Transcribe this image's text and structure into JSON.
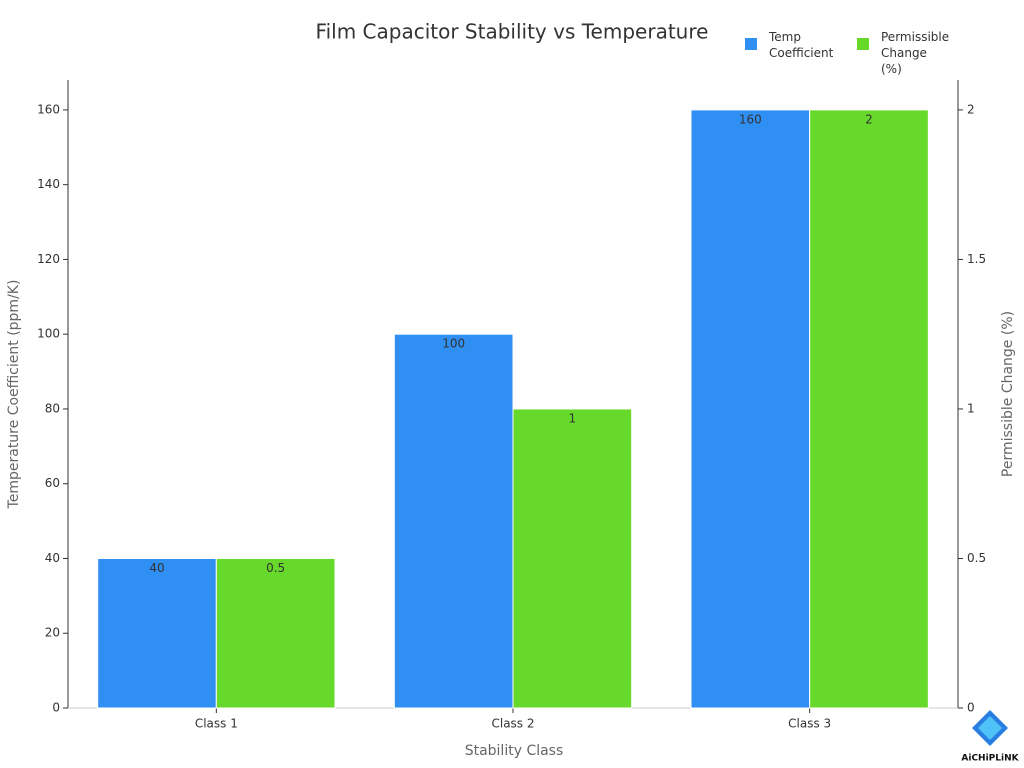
{
  "chart_data": {
    "type": "bar",
    "title": "Film Capacitor Stability vs Temperature",
    "x_label": "Stability Class",
    "y_label": "Temperature Coefficient (ppm/K)",
    "y2_label": "Permissible Change (%)",
    "categories": [
      "Class 1",
      "Class 2",
      "Class 3"
    ],
    "series": [
      {
        "name": "Temp Coefficient",
        "color": "#2f8ff3",
        "values": [
          40,
          100,
          160
        ]
      },
      {
        "name": "Permissible Change (%)",
        "color": "#66d92a",
        "values": [
          0.5,
          1,
          2
        ],
        "axis": "y2"
      }
    ],
    "ylim": [
      0,
      168
    ],
    "yticks": [
      0,
      20,
      40,
      60,
      80,
      100,
      120,
      140,
      160
    ],
    "y2lim": [
      0,
      2.1
    ],
    "y2ticks": [
      0,
      0.5,
      1,
      1.5,
      2
    ],
    "legend": "top-right",
    "grid": false,
    "watermark": "AiCHiPLiNK"
  }
}
